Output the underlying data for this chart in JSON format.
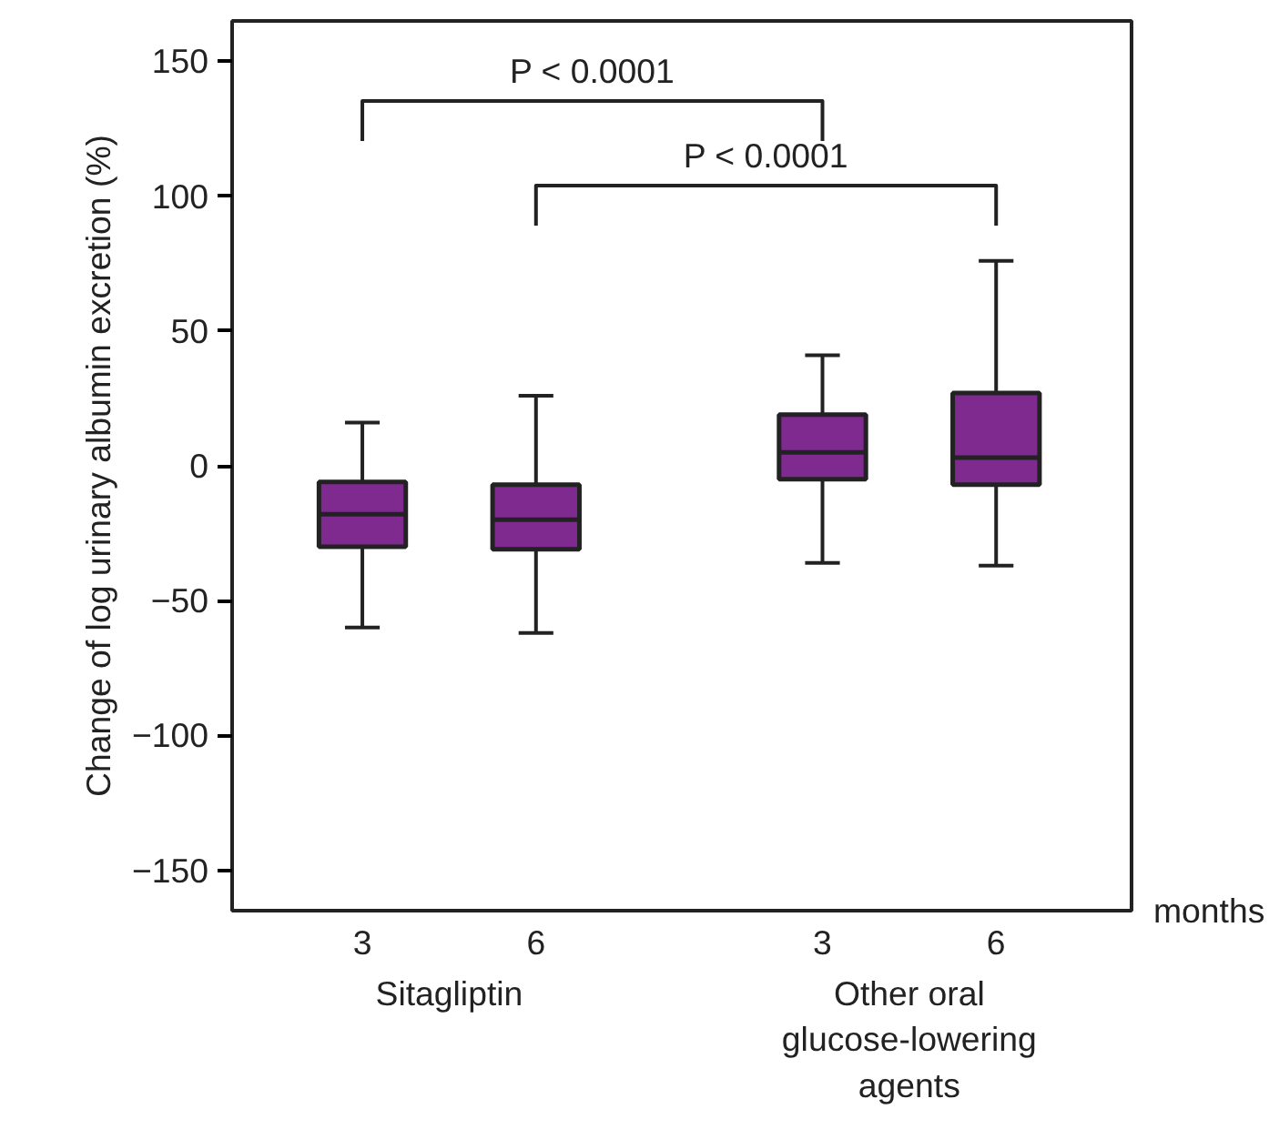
{
  "chart_data": {
    "type": "box",
    "categories": [
      "3",
      "6",
      "3",
      "6"
    ],
    "xlabel": "months",
    "ylabel": "Change of log urinary albumin excretion (%)",
    "color": "#7f2a8e",
    "boxes": [
      {
        "low": -60,
        "q1": -30,
        "median": -18,
        "q3": -6,
        "high": 16
      },
      {
        "low": -62,
        "q1": -31,
        "median": -20,
        "q3": -7,
        "high": 26
      },
      {
        "low": -36,
        "q1": -5,
        "median": 5,
        "q3": 19,
        "high": 41
      },
      {
        "low": -37,
        "q1": -7,
        "median": 3,
        "q3": 27,
        "high": 76
      }
    ],
    "ylim": [
      -165,
      165
    ],
    "yticks": [
      -150,
      -100,
      -50,
      0,
      50,
      100,
      150
    ],
    "grid": false,
    "annotations": [
      "P < 0.0001",
      "P < 0.0001",
      "Sitagliptin",
      "Other oral glucose-lowering agents"
    ]
  }
}
